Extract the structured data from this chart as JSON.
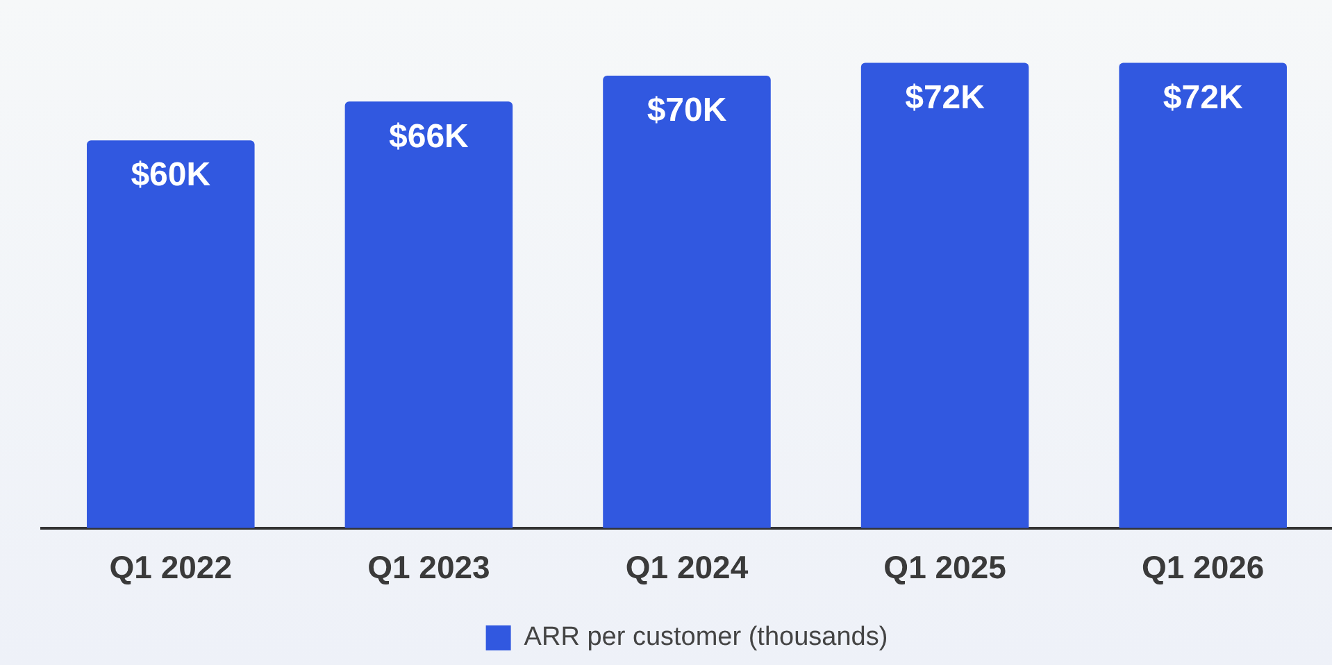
{
  "chart_data": {
    "type": "bar",
    "categories": [
      "Q1 2022",
      "Q1 2023",
      "Q1 2024",
      "Q1 2025",
      "Q1 2026"
    ],
    "series": [
      {
        "name": "ARR per customer (thousands)",
        "color": "#3158e0",
        "values": [
          60,
          66,
          70,
          72,
          72
        ],
        "value_labels": [
          "$60K",
          "$66K",
          "$70K",
          "$72K",
          "$72K"
        ]
      }
    ],
    "legend": "bottom",
    "grid": false
  }
}
